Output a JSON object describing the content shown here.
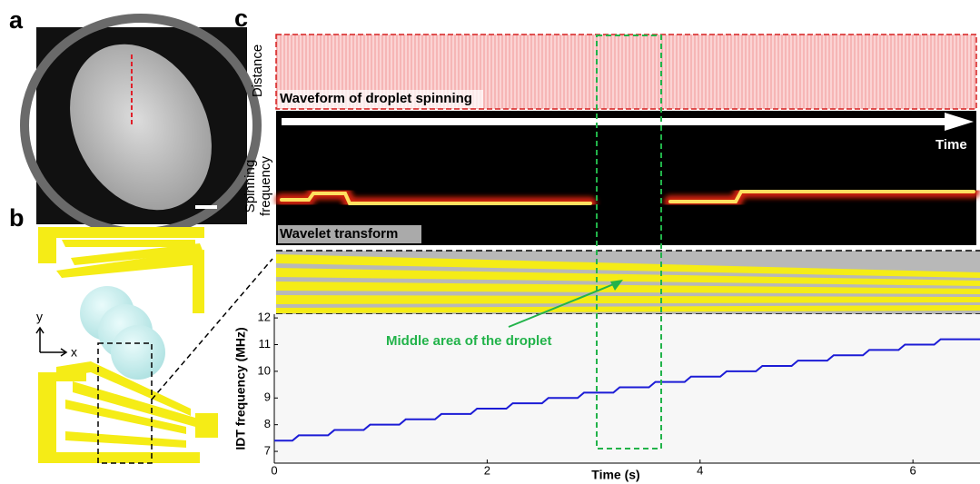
{
  "figure": {
    "panel_a": "a",
    "panel_b": "b",
    "panel_c": "c",
    "axis_y": "y",
    "axis_x": "x",
    "distance_label": "Distance",
    "waveform_label": "Waveform of droplet spinning",
    "time_arrow_label": "Time",
    "spinning_label_1": "Spinning",
    "spinning_label_2": "frequency",
    "wavelet_label": "Wavelet transform",
    "annotation": "Middle area of the droplet"
  },
  "chart_data": {
    "type": "line",
    "xlabel": "Time (s)",
    "ylabel": "IDT frequency (MHz)",
    "xlim": [
      0,
      6.63
    ],
    "ylim": [
      6.56,
      12.14
    ],
    "xticks": [
      0,
      2,
      4,
      6
    ],
    "yticks": [
      7,
      8,
      9,
      10,
      11,
      12
    ],
    "series": [
      {
        "color": "#1c1cd6",
        "x": [
          0,
          0.17,
          0.23,
          0.505,
          0.565,
          0.84,
          0.9,
          1.175,
          1.235,
          1.51,
          1.57,
          1.845,
          1.905,
          2.18,
          2.24,
          2.515,
          2.575,
          2.85,
          2.91,
          3.185,
          3.245,
          3.52,
          3.58,
          3.855,
          3.915,
          4.19,
          4.25,
          4.525,
          4.585,
          4.86,
          4.92,
          5.195,
          5.255,
          5.53,
          5.59,
          5.865,
          5.925,
          6.2,
          6.26,
          6.63
        ],
        "values": [
          7.4,
          7.4,
          7.6,
          7.6,
          7.8,
          7.8,
          8.0,
          8.0,
          8.2,
          8.2,
          8.4,
          8.4,
          8.6,
          8.6,
          8.8,
          8.8,
          9.0,
          9.0,
          9.2,
          9.2,
          9.4,
          9.4,
          9.6,
          9.6,
          9.8,
          9.8,
          10.0,
          10.0,
          10.2,
          10.2,
          10.4,
          10.4,
          10.6,
          10.6,
          10.8,
          10.8,
          11.0,
          11.0,
          11.2,
          11.2
        ]
      }
    ]
  }
}
